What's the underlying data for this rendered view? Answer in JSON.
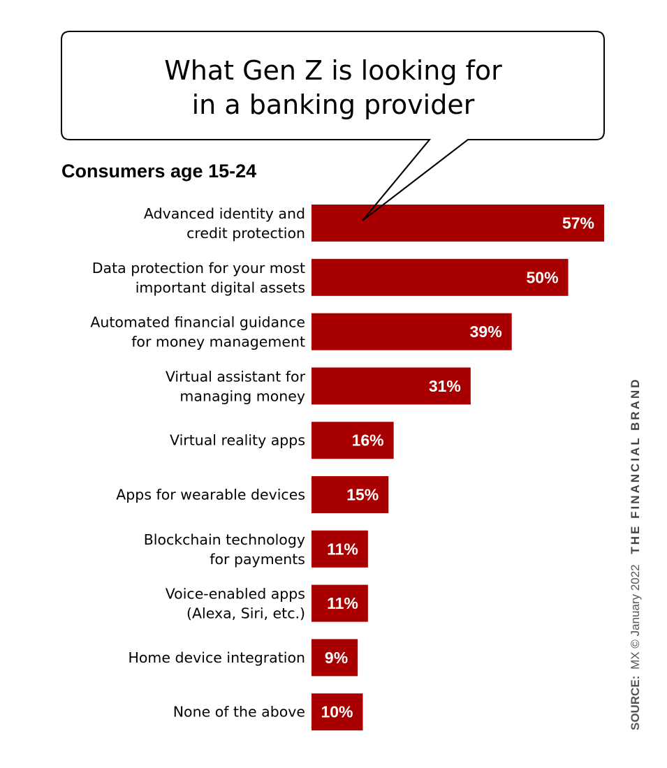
{
  "chart_data": {
    "type": "bar",
    "orientation": "horizontal",
    "title": "What Gen Z is looking for in a banking provider",
    "title_lines": [
      "What Gen Z is looking for",
      "in a banking provider"
    ],
    "subtitle": "Consumers age 15-24",
    "categories": [
      [
        "Advanced identity and",
        "credit protection"
      ],
      [
        "Data protection for your most",
        "important digital assets"
      ],
      [
        "Automated financial guidance",
        "for money management"
      ],
      [
        "Virtual assistant for",
        "managing money"
      ],
      [
        "Virtual reality apps"
      ],
      [
        "Apps for wearable devices"
      ],
      [
        "Blockchain technology",
        "for payments"
      ],
      [
        "Voice-enabled apps",
        "(Alexa, Siri, etc.)"
      ],
      [
        "Home device integration"
      ],
      [
        "None of the above"
      ]
    ],
    "values": [
      57,
      50,
      39,
      31,
      16,
      15,
      11,
      11,
      9,
      10
    ],
    "data_labels": [
      "57%",
      "50%",
      "39%",
      "31%",
      "16%",
      "15%",
      "11%",
      "11%",
      "9%",
      "10%"
    ],
    "xlim": [
      0,
      57
    ],
    "grid": false,
    "bar_color": "#a80000"
  },
  "source": {
    "label": "SOURCE:",
    "text": "MX © January 2022",
    "brand": "THE FINANCIAL BRAND"
  }
}
